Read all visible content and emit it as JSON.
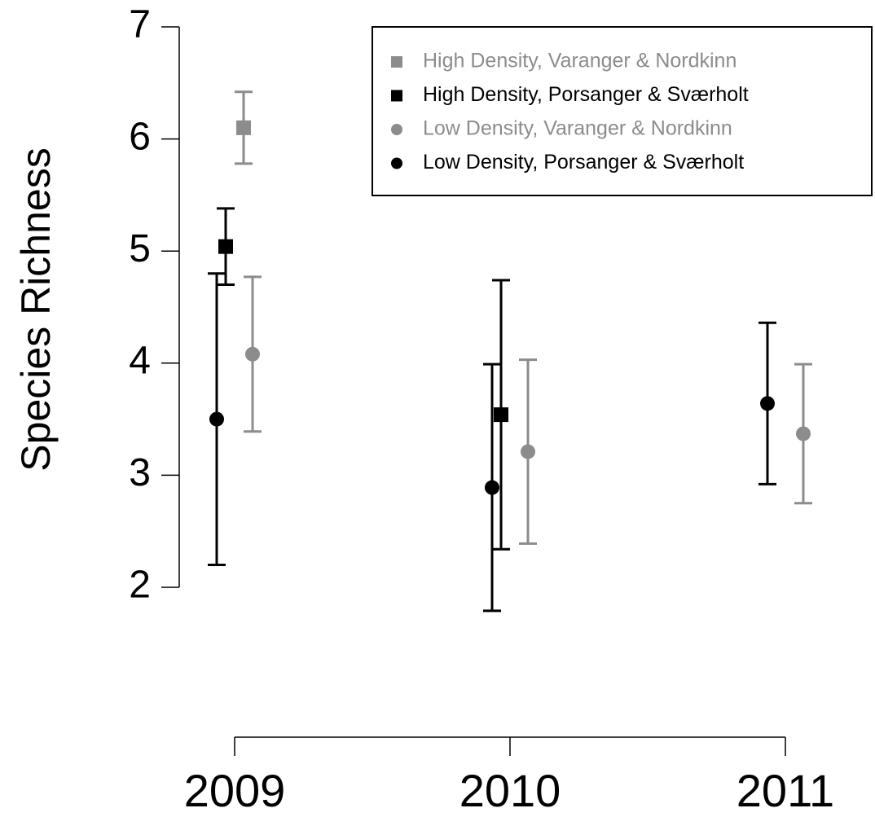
{
  "chart_data": {
    "type": "errorbar-scatter",
    "ylabel": "Species Richness",
    "categories": [
      "2009",
      "2010",
      "2011"
    ],
    "ylim": [
      2,
      7
    ],
    "yticks": [
      2,
      3,
      4,
      5,
      6,
      7
    ],
    "legend": "top-right",
    "series": [
      {
        "name": "High Density, Varanger & Nordkinn",
        "color": "#8c8c8c",
        "marker": "square",
        "values": [
          6.1,
          null,
          null
        ],
        "errors": [
          0.32,
          null,
          null
        ]
      },
      {
        "name": "High Density, Porsanger & Sværholt",
        "color": "#000000",
        "marker": "square",
        "values": [
          5.04,
          3.54,
          null
        ],
        "errors": [
          0.34,
          1.2,
          null
        ]
      },
      {
        "name": "Low Density, Varanger & Nordkinn",
        "color": "#8c8c8c",
        "marker": "circle",
        "values": [
          4.08,
          3.21,
          3.37
        ],
        "errors": [
          0.69,
          0.82,
          0.62
        ]
      },
      {
        "name": "Low Density, Porsanger & Sværholt",
        "color": "#000000",
        "marker": "circle",
        "values": [
          3.5,
          2.89,
          3.64
        ],
        "errors": [
          1.3,
          1.1,
          0.72
        ]
      }
    ]
  }
}
